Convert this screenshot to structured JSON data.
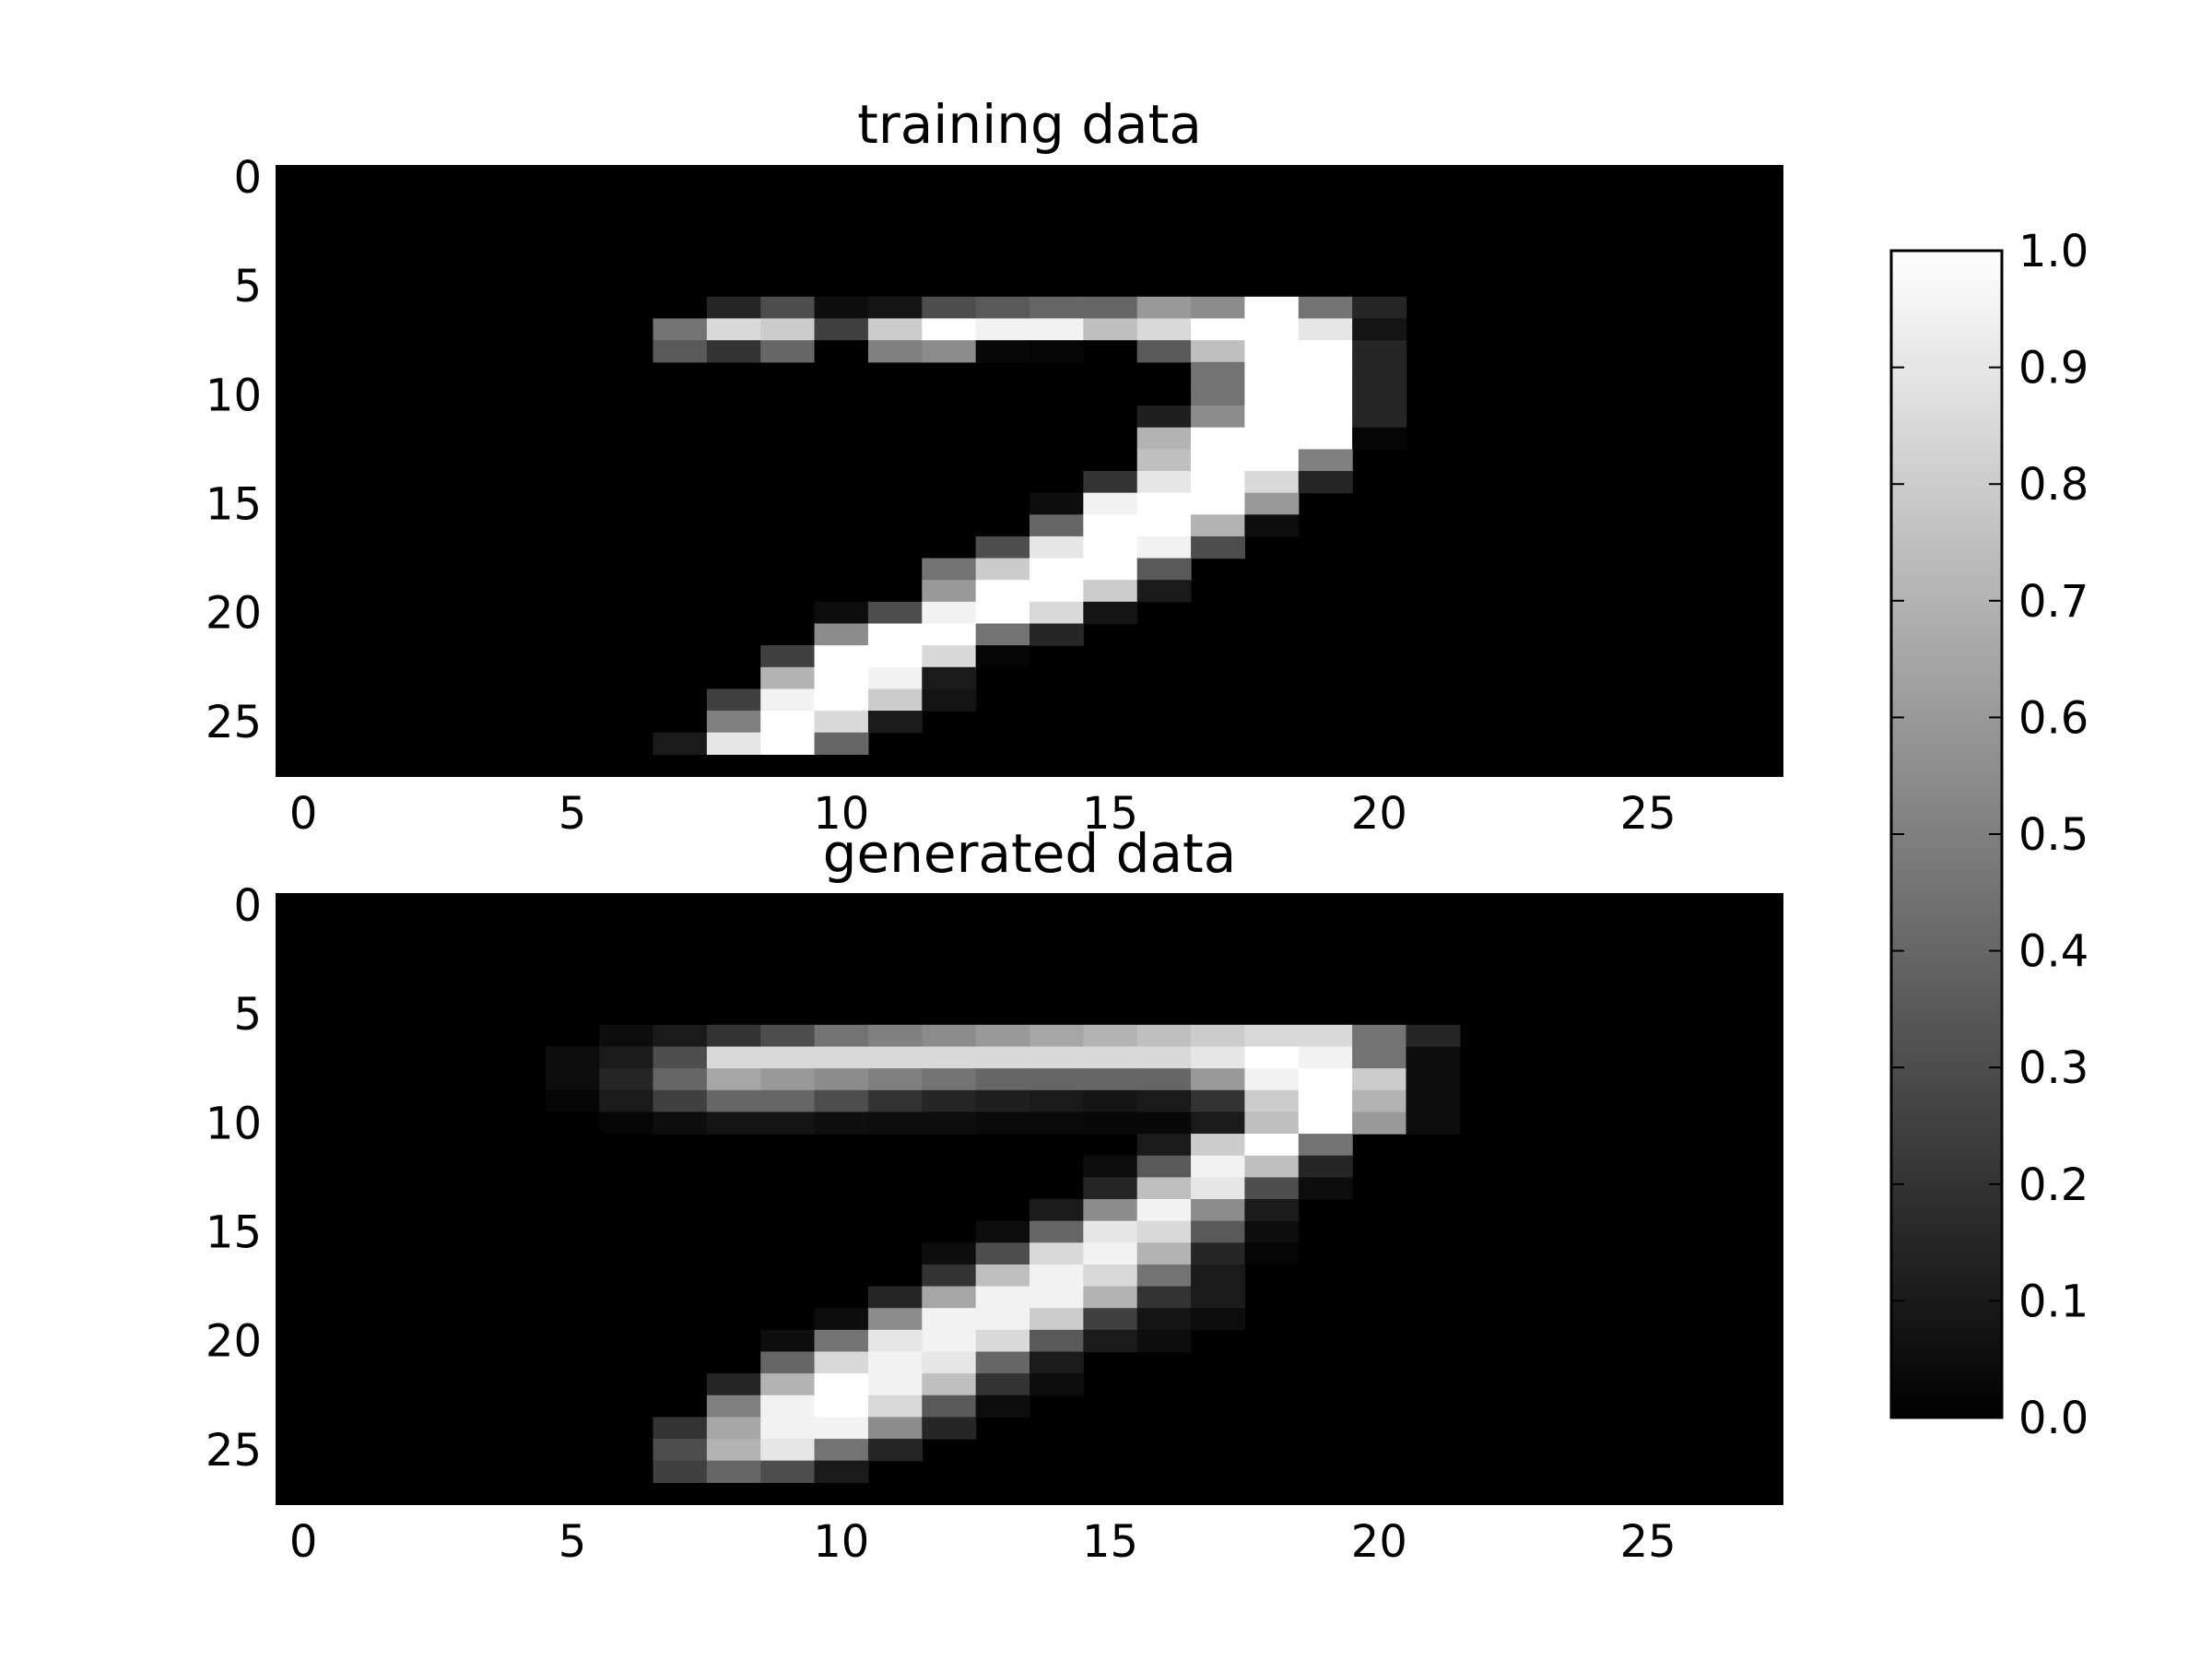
{
  "chart_data": [
    {
      "type": "heatmap",
      "title": "training data",
      "colormap": "gray",
      "xlim": [
        -0.5,
        27.5
      ],
      "ylim": [
        27.5,
        -0.5
      ],
      "x_ticks": [
        "0",
        "5",
        "10",
        "15",
        "20",
        "25"
      ],
      "y_ticks": [
        "0",
        "5",
        "10",
        "15",
        "20",
        "25"
      ],
      "rows": {
        "6": {
          "start": 8,
          "values": [
            0.15,
            0.3,
            0.05,
            0.08,
            0.3,
            0.35,
            0.4,
            0.4,
            0.6,
            0.55,
            1.0,
            0.45,
            0.15
          ]
        },
        "7": {
          "start": 7,
          "values": [
            0.45,
            0.85,
            0.8,
            0.25,
            0.8,
            1.0,
            0.95,
            0.95,
            0.75,
            0.85,
            1.0,
            1.0,
            0.9,
            0.08
          ]
        },
        "8": {
          "start": 7,
          "values": [
            0.35,
            0.2,
            0.4,
            0.0,
            0.5,
            0.55,
            0.03,
            0.02,
            0.0,
            0.35,
            0.75,
            1.0,
            1.0,
            0.15
          ]
        },
        "9": {
          "start": 17,
          "values": [
            0.45,
            1.0,
            1.0,
            0.15
          ]
        },
        "10": {
          "start": 17,
          "values": [
            0.45,
            1.0,
            1.0,
            0.15
          ]
        },
        "11": {
          "start": 16,
          "values": [
            0.12,
            0.55,
            1.0,
            1.0,
            0.15
          ]
        },
        "12": {
          "start": 16,
          "values": [
            0.7,
            1.0,
            1.0,
            1.0,
            0.02
          ]
        },
        "13": {
          "start": 16,
          "values": [
            0.75,
            1.0,
            1.0,
            0.5
          ]
        },
        "14": {
          "start": 15,
          "values": [
            0.2,
            0.9,
            1.0,
            0.85,
            0.15
          ]
        },
        "15": {
          "start": 14,
          "values": [
            0.05,
            0.95,
            1.0,
            1.0,
            0.6
          ]
        },
        "16": {
          "start": 14,
          "values": [
            0.4,
            1.0,
            1.0,
            0.7,
            0.05
          ]
        },
        "17": {
          "start": 13,
          "values": [
            0.3,
            0.9,
            1.0,
            0.95,
            0.3
          ]
        },
        "18": {
          "start": 12,
          "values": [
            0.45,
            0.8,
            1.0,
            1.0,
            0.35
          ]
        },
        "19": {
          "start": 12,
          "values": [
            0.6,
            1.0,
            1.0,
            0.8,
            0.1
          ]
        },
        "20": {
          "start": 10,
          "values": [
            0.05,
            0.3,
            0.95,
            1.0,
            0.85,
            0.08
          ]
        },
        "21": {
          "start": 10,
          "values": [
            0.55,
            1.0,
            1.0,
            0.45,
            0.15
          ]
        },
        "22": {
          "start": 9,
          "values": [
            0.25,
            1.0,
            1.0,
            0.85,
            0.02
          ]
        },
        "23": {
          "start": 9,
          "values": [
            0.7,
            1.0,
            0.95,
            0.1
          ]
        },
        "24": {
          "start": 8,
          "values": [
            0.25,
            0.95,
            1.0,
            0.8,
            0.08
          ]
        },
        "25": {
          "start": 8,
          "values": [
            0.5,
            1.0,
            0.85,
            0.1
          ]
        },
        "26": {
          "start": 7,
          "values": [
            0.1,
            0.9,
            1.0,
            0.4
          ]
        }
      }
    },
    {
      "type": "heatmap",
      "title": "generated data",
      "colormap": "gray",
      "xlim": [
        -0.5,
        27.5
      ],
      "ylim": [
        27.5,
        -0.5
      ],
      "x_ticks": [
        "0",
        "5",
        "10",
        "15",
        "20",
        "25"
      ],
      "y_ticks": [
        "0",
        "5",
        "10",
        "15",
        "20",
        "25"
      ],
      "rows": {
        "6": {
          "start": 6,
          "values": [
            0.05,
            0.1,
            0.2,
            0.3,
            0.45,
            0.5,
            0.55,
            0.6,
            0.65,
            0.7,
            0.75,
            0.8,
            0.85,
            0.85,
            0.45,
            0.15
          ]
        },
        "7": {
          "start": 5,
          "values": [
            0.05,
            0.1,
            0.3,
            0.85,
            0.85,
            0.85,
            0.85,
            0.85,
            0.85,
            0.85,
            0.85,
            0.85,
            0.9,
            1.0,
            0.95,
            0.45,
            0.05
          ]
        },
        "8": {
          "start": 5,
          "values": [
            0.05,
            0.15,
            0.4,
            0.65,
            0.6,
            0.55,
            0.5,
            0.45,
            0.4,
            0.4,
            0.4,
            0.4,
            0.6,
            0.95,
            1.0,
            0.8,
            0.05
          ]
        },
        "9": {
          "start": 5,
          "values": [
            0.02,
            0.1,
            0.25,
            0.4,
            0.4,
            0.3,
            0.2,
            0.15,
            0.12,
            0.1,
            0.08,
            0.1,
            0.2,
            0.8,
            1.0,
            0.7,
            0.05
          ]
        },
        "10": {
          "start": 6,
          "values": [
            0.02,
            0.05,
            0.08,
            0.08,
            0.06,
            0.05,
            0.05,
            0.04,
            0.04,
            0.03,
            0.03,
            0.1,
            0.75,
            1.0,
            0.6,
            0.05
          ]
        },
        "11": {
          "start": 16,
          "values": [
            0.1,
            0.8,
            1.0,
            0.45
          ]
        },
        "12": {
          "start": 15,
          "values": [
            0.05,
            0.35,
            0.95,
            0.75,
            0.15
          ]
        },
        "13": {
          "start": 15,
          "values": [
            0.15,
            0.75,
            0.9,
            0.3,
            0.05
          ]
        },
        "14": {
          "start": 14,
          "values": [
            0.1,
            0.55,
            0.95,
            0.55,
            0.1
          ]
        },
        "15": {
          "start": 13,
          "values": [
            0.05,
            0.4,
            0.9,
            0.85,
            0.35,
            0.05
          ]
        },
        "16": {
          "start": 12,
          "values": [
            0.05,
            0.3,
            0.85,
            0.95,
            0.7,
            0.15,
            0.02
          ]
        },
        "17": {
          "start": 12,
          "values": [
            0.2,
            0.75,
            0.95,
            0.85,
            0.45,
            0.1
          ]
        },
        "18": {
          "start": 11,
          "values": [
            0.15,
            0.65,
            0.95,
            0.95,
            0.7,
            0.2,
            0.1
          ]
        },
        "19": {
          "start": 10,
          "values": [
            0.05,
            0.55,
            0.95,
            0.95,
            0.8,
            0.25,
            0.08,
            0.05
          ]
        },
        "20": {
          "start": 9,
          "values": [
            0.05,
            0.45,
            0.9,
            0.95,
            0.85,
            0.35,
            0.1,
            0.05
          ]
        },
        "21": {
          "start": 9,
          "values": [
            0.4,
            0.85,
            0.95,
            0.9,
            0.4,
            0.1
          ]
        },
        "22": {
          "start": 8,
          "values": [
            0.15,
            0.7,
            1.0,
            0.95,
            0.75,
            0.2,
            0.05
          ]
        },
        "23": {
          "start": 8,
          "values": [
            0.5,
            0.95,
            1.0,
            0.85,
            0.35,
            0.05
          ]
        },
        "24": {
          "start": 7,
          "values": [
            0.2,
            0.65,
            0.95,
            0.95,
            0.55,
            0.15
          ]
        },
        "25": {
          "start": 7,
          "values": [
            0.3,
            0.7,
            0.9,
            0.45,
            0.15
          ]
        },
        "26": {
          "start": 7,
          "values": [
            0.25,
            0.4,
            0.3,
            0.1
          ]
        }
      }
    }
  ],
  "colorbar": {
    "range": [
      0.0,
      1.0
    ],
    "tick_values": [
      0.0,
      0.1,
      0.2,
      0.3,
      0.4,
      0.5,
      0.6,
      0.7,
      0.8,
      0.9,
      1.0
    ],
    "tick_labels": [
      "0.0",
      "0.1",
      "0.2",
      "0.3",
      "0.4",
      "0.5",
      "0.6",
      "0.7",
      "0.8",
      "0.9",
      "1.0"
    ]
  }
}
